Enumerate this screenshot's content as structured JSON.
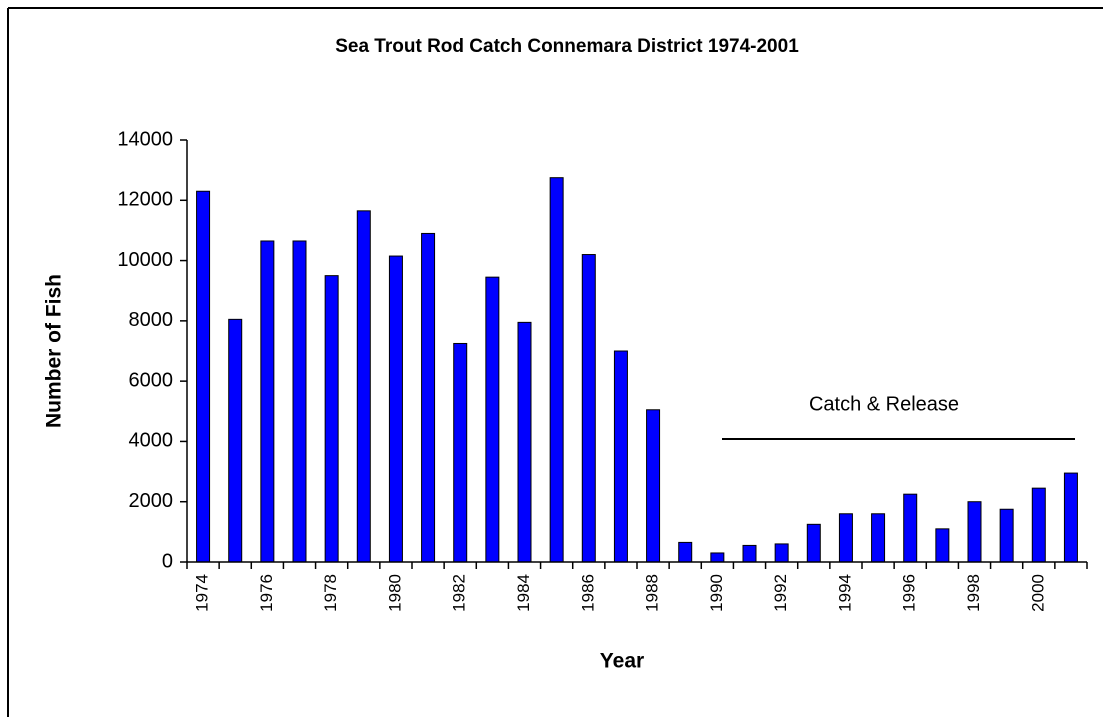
{
  "chart_data": {
    "type": "bar",
    "title": "Sea Trout Rod Catch Connemara District 1974-2001",
    "x_label": "Year",
    "y_label": "Number of Fish",
    "categories": [
      "1974",
      null,
      "1976",
      null,
      "1978",
      null,
      "1980",
      null,
      "1982",
      null,
      "1984",
      null,
      "1986",
      null,
      "1988",
      null,
      "1990",
      null,
      "1992",
      null,
      "1994",
      null,
      "1996",
      null,
      "1998",
      null,
      "2000",
      null
    ],
    "values": [
      12300,
      8050,
      10650,
      10650,
      9500,
      11650,
      10150,
      10900,
      7250,
      9450,
      7950,
      12750,
      10200,
      7000,
      5050,
      650,
      300,
      550,
      600,
      1250,
      1600,
      1600,
      2250,
      1100,
      2000,
      1750,
      2450,
      2950
    ],
    "color": "#0000ff",
    "ylim": [
      0,
      14000
    ],
    "yticks": [
      0,
      2000,
      4000,
      6000,
      8000,
      10000,
      12000,
      14000
    ],
    "grid": false,
    "annotation": "Catch & Release"
  }
}
